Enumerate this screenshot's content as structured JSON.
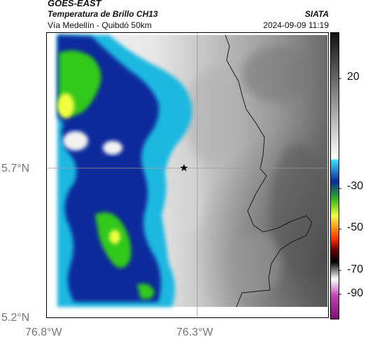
{
  "header": {
    "satellite": "GOES-EAST",
    "product": "Temperatura de Brillo CH13",
    "region": "Vía Medellín - Quibdó 50km",
    "agency": "SIATA",
    "timestamp": "2024-09-09 11:19"
  },
  "map": {
    "lat_ticks": [
      "5.7°N",
      "5.2°N"
    ],
    "lon_ticks": [
      "76.8°W",
      "76.3°W"
    ],
    "marker_icon": "star-icon",
    "colors": {
      "frame": "#000000",
      "gridline": "#999999",
      "border": "#1a1a1a",
      "cold_core": "#f2ff3c",
      "green": "#30c81e",
      "blue": "#0a2a9c",
      "cyan": "#1eb8e0"
    }
  },
  "colorbar": {
    "ticks": [
      "20",
      "-30",
      "-50",
      "-70",
      "-90"
    ]
  }
}
